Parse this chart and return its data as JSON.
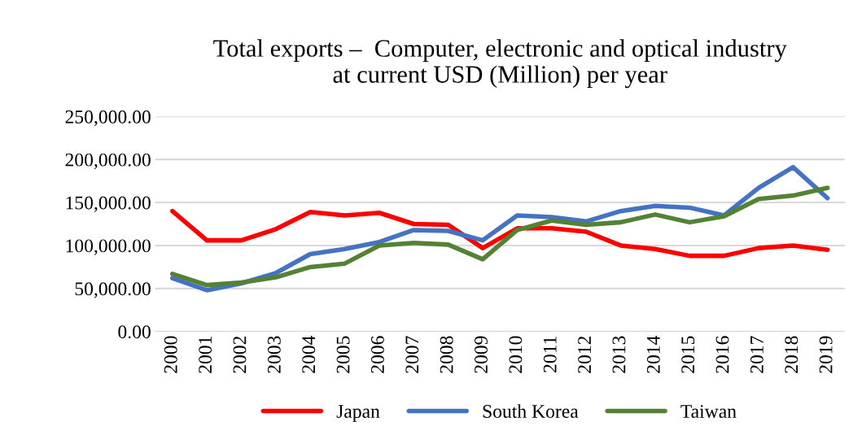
{
  "chart_data": {
    "type": "line",
    "title": "Total exports –  Computer, electronic and optical industry\nat current USD (Million) per year",
    "categories": [
      "2000",
      "2001",
      "2002",
      "2003",
      "2004",
      "2005",
      "2006",
      "2007",
      "2008",
      "2009",
      "2010",
      "2011",
      "2012",
      "2013",
      "2014",
      "2015",
      "2016",
      "2017",
      "2018",
      "2019"
    ],
    "series": [
      {
        "name": "Japan",
        "color": "#ff0000",
        "values": [
          140000,
          106000,
          106000,
          119000,
          139000,
          135000,
          138000,
          125000,
          124000,
          97000,
          120000,
          120000,
          116000,
          100000,
          96000,
          88000,
          88000,
          97000,
          100000,
          95000
        ]
      },
      {
        "name": "South Korea",
        "color": "#4472c4",
        "values": [
          62000,
          48000,
          56000,
          68000,
          90000,
          96000,
          104000,
          118000,
          117000,
          106000,
          135000,
          133000,
          128000,
          140000,
          146000,
          144000,
          135000,
          167000,
          191000,
          155000
        ]
      },
      {
        "name": "Taiwan",
        "color": "#548235",
        "values": [
          67000,
          54000,
          57000,
          63000,
          75000,
          79000,
          100000,
          103000,
          101000,
          84000,
          118000,
          129000,
          124000,
          127000,
          136000,
          127000,
          134000,
          154000,
          158000,
          167000
        ]
      }
    ],
    "ylim": [
      0,
      250000
    ],
    "yticks": [
      {
        "value": 0,
        "label": "0.00"
      },
      {
        "value": 50000,
        "label": "50,000.00"
      },
      {
        "value": 100000,
        "label": "100,000.00"
      },
      {
        "value": 150000,
        "label": "150,000.00"
      },
      {
        "value": 200000,
        "label": "200,000.00"
      },
      {
        "value": 250000,
        "label": "250,000.00"
      }
    ],
    "grid": "y",
    "legend": "bottom",
    "marker": "none",
    "line_style": "solid"
  }
}
